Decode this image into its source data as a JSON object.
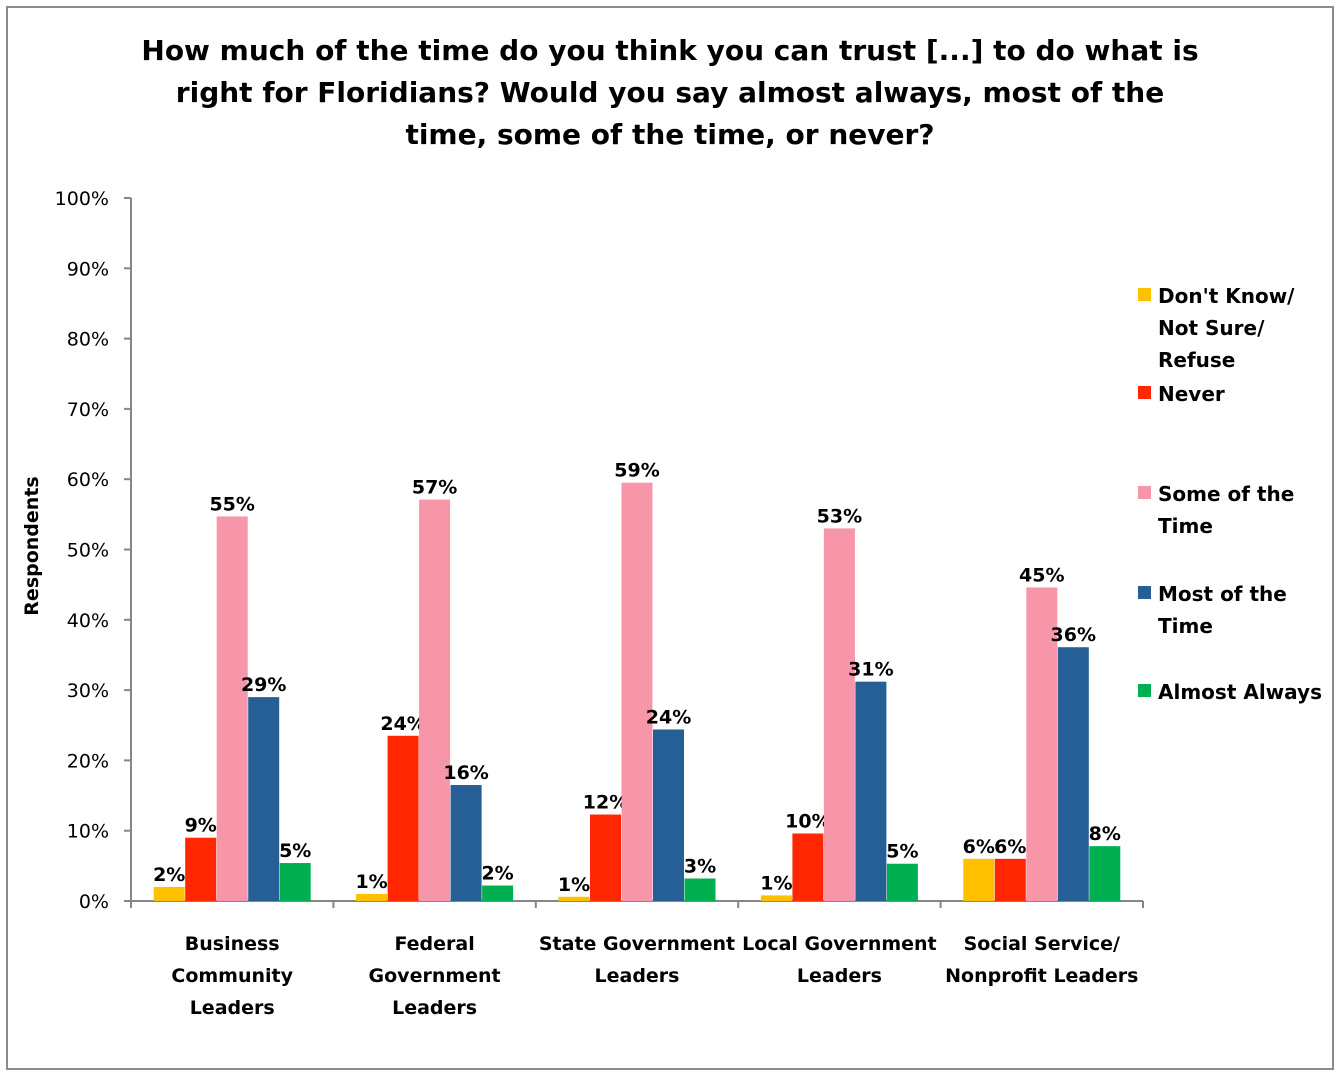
{
  "title_lines": [
    "How much of the time do you think you can trust [...] to do what is",
    "right for Floridians? Would you say almost always, most of the",
    "time, some of the time, or never?"
  ],
  "chart_data": {
    "type": "bar",
    "title": "How much of the time do you think you can trust [...] to do what is right for Floridians? Would you say almost always, most of the time, some of the time, or never?",
    "ylabel": "Respondents",
    "xlabel": "",
    "ylim": [
      0,
      100
    ],
    "yticks": [
      "0%",
      "10%",
      "20%",
      "30%",
      "40%",
      "50%",
      "60%",
      "70%",
      "80%",
      "90%",
      "100%"
    ],
    "categories": [
      [
        "Business",
        "Community",
        "Leaders"
      ],
      [
        "Federal",
        "Government",
        "Leaders"
      ],
      [
        "State Government",
        "Leaders"
      ],
      [
        "Local Government",
        "Leaders"
      ],
      [
        "Social Service/",
        "Nonprofit Leaders"
      ]
    ],
    "series": [
      {
        "name": "Don't Know/ Not Sure/ Refuse",
        "legend_lines": [
          "Don't Know/",
          "Not Sure/",
          "Refuse"
        ],
        "color": "#FFC000",
        "values": [
          2,
          1,
          0.6,
          0.8,
          6
        ],
        "labels": [
          "2%",
          "1%",
          "1%",
          "1%",
          "6%"
        ]
      },
      {
        "name": "Never",
        "legend_lines": [
          "Never"
        ],
        "color": "#FF2600",
        "values": [
          9,
          23.5,
          12.3,
          9.6,
          6
        ],
        "labels": [
          "9%",
          "24%",
          "12%",
          "10%",
          "6%"
        ]
      },
      {
        "name": "Some of the Time",
        "legend_lines": [
          "Some of the",
          "Time"
        ],
        "color": "#F795A9",
        "values": [
          54.7,
          57.1,
          59.5,
          53,
          44.6
        ],
        "labels": [
          "55%",
          "57%",
          "59%",
          "53%",
          "45%"
        ]
      },
      {
        "name": "Most of the Time",
        "legend_lines": [
          "Most of the",
          "Time"
        ],
        "color": "#265F96",
        "values": [
          29,
          16.5,
          24.4,
          31.2,
          36.1
        ],
        "labels": [
          "29%",
          "16%",
          "24%",
          "31%",
          "36%"
        ]
      },
      {
        "name": "Almost Always",
        "legend_lines": [
          "Almost Always"
        ],
        "color": "#00B050",
        "values": [
          5.4,
          2.2,
          3.2,
          5.3,
          7.8
        ],
        "labels": [
          "5%",
          "2%",
          "3%",
          "5%",
          "8%"
        ]
      }
    ],
    "legend_position": "right",
    "grid": false
  }
}
